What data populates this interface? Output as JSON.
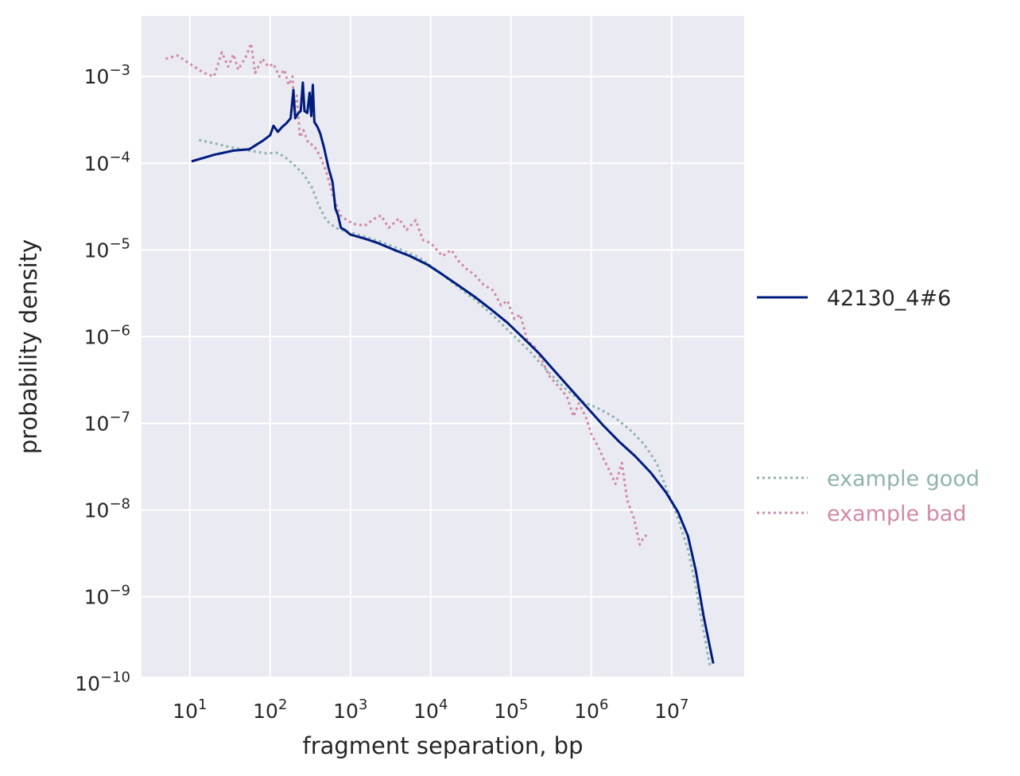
{
  "chart_data": {
    "type": "line",
    "xlabel": "fragment separation, bp",
    "ylabel": "probability density",
    "xscale": "log",
    "yscale": "log",
    "xlim": [
      2.5,
      80000000
    ],
    "ylim": [
      1.2e-10,
      0.005
    ],
    "x_ticks": [
      {
        "value": 10,
        "exp": "1"
      },
      {
        "value": 100,
        "exp": "2"
      },
      {
        "value": 1000,
        "exp": "3"
      },
      {
        "value": 10000,
        "exp": "4"
      },
      {
        "value": 100000,
        "exp": "5"
      },
      {
        "value": 1000000,
        "exp": "6"
      },
      {
        "value": 10000000,
        "exp": "7"
      }
    ],
    "y_ticks": [
      {
        "value": 0.001,
        "exp": "−3"
      },
      {
        "value": 0.0001,
        "exp": "−4"
      },
      {
        "value": 1e-05,
        "exp": "−5"
      },
      {
        "value": 1e-06,
        "exp": "−6"
      },
      {
        "value": 1e-07,
        "exp": "−7"
      },
      {
        "value": 1e-08,
        "exp": "−8"
      },
      {
        "value": 1e-09,
        "exp": "−9"
      },
      {
        "value": 1e-10,
        "exp": "−10"
      }
    ],
    "tick_base": "10",
    "grid": true,
    "background": "#eaeaf2",
    "legend_placement": "outside-right",
    "series": [
      {
        "name": "42130_4#6",
        "color": "#001c7f",
        "style": "solid",
        "points": [
          [
            10.5,
            0.000105
          ],
          [
            20,
            0.000125
          ],
          [
            35,
            0.00014
          ],
          [
            55,
            0.000145
          ],
          [
            80,
            0.00018
          ],
          [
            100,
            0.00021
          ],
          [
            110,
            0.00027
          ],
          [
            125,
            0.00023
          ],
          [
            140,
            0.00026
          ],
          [
            160,
            0.00029
          ],
          [
            180,
            0.00033
          ],
          [
            195,
            0.0007
          ],
          [
            205,
            0.00033
          ],
          [
            225,
            0.00038
          ],
          [
            240,
            0.0004
          ],
          [
            255,
            0.00085
          ],
          [
            268,
            0.0004
          ],
          [
            290,
            0.00038
          ],
          [
            310,
            0.00065
          ],
          [
            325,
            0.00035
          ],
          [
            340,
            0.0008
          ],
          [
            355,
            0.0003
          ],
          [
            390,
            0.00026
          ],
          [
            420,
            0.00022
          ],
          [
            470,
            0.00015
          ],
          [
            530,
            9e-05
          ],
          [
            600,
            6e-05
          ],
          [
            650,
            3e-05
          ],
          [
            700,
            2.5e-05
          ],
          [
            760,
            1.8e-05
          ],
          [
            850,
            1.7e-05
          ],
          [
            1000,
            1.5e-05
          ],
          [
            1500,
            1.35e-05
          ],
          [
            2200,
            1.2e-05
          ],
          [
            3500,
            1e-05
          ],
          [
            5500,
            8.5e-06
          ],
          [
            9000,
            6.8e-06
          ],
          [
            14000,
            5.2e-06
          ],
          [
            22000,
            3.9e-06
          ],
          [
            35000,
            2.9e-06
          ],
          [
            55000,
            2.1e-06
          ],
          [
            90000,
            1.45e-06
          ],
          [
            140000,
            9.8e-07
          ],
          [
            220000,
            6.5e-07
          ],
          [
            350000,
            4e-07
          ],
          [
            550000,
            2.5e-07
          ],
          [
            900000,
            1.5e-07
          ],
          [
            1400000,
            9.5e-08
          ],
          [
            2200000,
            6.2e-08
          ],
          [
            3500000,
            4.2e-08
          ],
          [
            5500000,
            2.7e-08
          ],
          [
            8500000,
            1.6e-08
          ],
          [
            12000000,
            9.5e-09
          ],
          [
            16000000,
            5e-09
          ],
          [
            20000000,
            2e-09
          ],
          [
            25000000,
            6e-10
          ],
          [
            33000000,
            1.7e-10
          ]
        ]
      },
      {
        "name": "example good",
        "color": "#8fb3b0",
        "style": "dotted",
        "points": [
          [
            13,
            0.000185
          ],
          [
            20,
            0.00017
          ],
          [
            35,
            0.00015
          ],
          [
            60,
            0.000138
          ],
          [
            90,
            0.00013
          ],
          [
            120,
            0.000132
          ],
          [
            150,
            0.00012
          ],
          [
            200,
            9.5e-05
          ],
          [
            260,
            7.5e-05
          ],
          [
            330,
            5.3e-05
          ],
          [
            400,
            3.3e-05
          ],
          [
            500,
            2.2e-05
          ],
          [
            650,
            1.8e-05
          ],
          [
            850,
            1.65e-05
          ],
          [
            1100,
            1.55e-05
          ],
          [
            1600,
            1.4e-05
          ],
          [
            2500,
            1.22e-05
          ],
          [
            4000,
            1.03e-05
          ],
          [
            7000,
            8.3e-06
          ],
          [
            12000,
            5.8e-06
          ],
          [
            20000,
            4e-06
          ],
          [
            35000,
            2.7e-06
          ],
          [
            60000,
            1.75e-06
          ],
          [
            100000,
            1.1e-06
          ],
          [
            170000,
            6.8e-07
          ],
          [
            300000,
            3.8e-07
          ],
          [
            500000,
            2.4e-07
          ],
          [
            800000,
            1.75e-07
          ],
          [
            1300000,
            1.45e-07
          ],
          [
            2000000,
            1.15e-07
          ],
          [
            3000000,
            8.5e-08
          ],
          [
            4500000,
            5.8e-08
          ],
          [
            6500000,
            3.5e-08
          ],
          [
            9000000,
            1.6e-08
          ],
          [
            12000000,
            8e-09
          ],
          [
            16000000,
            3.5e-09
          ],
          [
            20000000,
            1.3e-09
          ],
          [
            25000000,
            4e-10
          ],
          [
            30000000,
            1.6e-10
          ]
        ]
      },
      {
        "name": "example bad",
        "color": "#d08aa5",
        "style": "dotted",
        "points": [
          [
            5,
            0.0016
          ],
          [
            7,
            0.00175
          ],
          [
            10,
            0.0014
          ],
          [
            15,
            0.0011
          ],
          [
            20,
            0.001
          ],
          [
            25,
            0.0019
          ],
          [
            30,
            0.0013
          ],
          [
            35,
            0.0018
          ],
          [
            40,
            0.0012
          ],
          [
            50,
            0.0017
          ],
          [
            58,
            0.0024
          ],
          [
            65,
            0.0011
          ],
          [
            80,
            0.0016
          ],
          [
            95,
            0.0013
          ],
          [
            110,
            0.0014
          ],
          [
            130,
            0.001
          ],
          [
            150,
            0.0012
          ],
          [
            170,
            0.0008
          ],
          [
            190,
            0.001
          ],
          [
            200,
            0.0004
          ],
          [
            215,
            0.0006
          ],
          [
            235,
            0.0002
          ],
          [
            260,
            0.00024
          ],
          [
            300,
            0.00017
          ],
          [
            350,
            0.00016
          ],
          [
            420,
            0.00012
          ],
          [
            500,
            8e-05
          ],
          [
            600,
            4.3e-05
          ],
          [
            750,
            2.5e-05
          ],
          [
            900,
            2.2e-05
          ],
          [
            1100,
            2e-05
          ],
          [
            1500,
            1.9e-05
          ],
          [
            2000,
            2.3e-05
          ],
          [
            2400,
            2.5e-05
          ],
          [
            3000,
            1.8e-05
          ],
          [
            4000,
            2.3e-05
          ],
          [
            5000,
            1.7e-05
          ],
          [
            6500,
            2.2e-05
          ],
          [
            8000,
            1.3e-05
          ],
          [
            10000,
            1.2e-05
          ],
          [
            14000,
            8.5e-06
          ],
          [
            18000,
            1e-05
          ],
          [
            22000,
            7.5e-06
          ],
          [
            28000,
            6e-06
          ],
          [
            35000,
            5.2e-06
          ],
          [
            45000,
            4e-06
          ],
          [
            60000,
            3.4e-06
          ],
          [
            75000,
            2.3e-06
          ],
          [
            90000,
            2.6e-06
          ],
          [
            110000,
            1.6e-06
          ],
          [
            130000,
            1.8e-06
          ],
          [
            160000,
            9e-07
          ],
          [
            200000,
            7.5e-07
          ],
          [
            250000,
            5e-07
          ],
          [
            300000,
            3.5e-07
          ],
          [
            400000,
            2.6e-07
          ],
          [
            500000,
            2e-07
          ],
          [
            600000,
            1.2e-07
          ],
          [
            700000,
            1.7e-07
          ],
          [
            850000,
            1.2e-07
          ],
          [
            1000000,
            7.5e-08
          ],
          [
            1200000,
            5.5e-08
          ],
          [
            1400000,
            4e-08
          ],
          [
            1700000,
            2.8e-08
          ],
          [
            2000000,
            2e-08
          ],
          [
            2400000,
            3.5e-08
          ],
          [
            2800000,
            1.3e-08
          ],
          [
            3400000,
            8e-09
          ],
          [
            4000000,
            4e-09
          ],
          [
            4600000,
            5e-09
          ],
          [
            5100000,
            5.2e-09
          ]
        ]
      }
    ]
  }
}
